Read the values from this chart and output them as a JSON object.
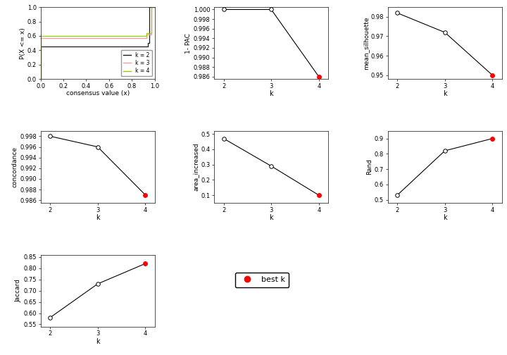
{
  "pac": {
    "k": [
      2,
      3,
      4
    ],
    "v": [
      1.0,
      1.0,
      0.986
    ],
    "best_k": 4,
    "ylim": [
      0.9855,
      1.0005
    ],
    "yticks": [
      0.986,
      0.988,
      0.99,
      0.992,
      0.994,
      0.996,
      0.998,
      1.0
    ],
    "ylabel": "1- PAC"
  },
  "silhouette": {
    "k": [
      2,
      3,
      4
    ],
    "v": [
      0.982,
      0.972,
      0.95
    ],
    "best_k": 4,
    "ylim": [
      0.948,
      0.985
    ],
    "yticks": [
      0.95,
      0.96,
      0.97,
      0.98
    ],
    "ylabel": "mean_silhouette"
  },
  "concordance": {
    "k": [
      2,
      3,
      4
    ],
    "v": [
      0.998,
      0.996,
      0.987
    ],
    "best_k": 4,
    "ylim": [
      0.9855,
      0.999
    ],
    "yticks": [
      0.986,
      0.988,
      0.99,
      0.992,
      0.994,
      0.996,
      0.998
    ],
    "ylabel": "concordance"
  },
  "area_increased": {
    "k": [
      2,
      3,
      4
    ],
    "v": [
      0.47,
      0.29,
      0.1
    ],
    "best_k": 4,
    "ylim": [
      0.05,
      0.52
    ],
    "yticks": [
      0.1,
      0.2,
      0.3,
      0.4,
      0.5
    ],
    "ylabel": "area_increased"
  },
  "rand": {
    "k": [
      2,
      3,
      4
    ],
    "v": [
      0.53,
      0.82,
      0.9
    ],
    "best_k": 4,
    "ylim": [
      0.48,
      0.95
    ],
    "yticks": [
      0.5,
      0.6,
      0.7,
      0.8,
      0.9
    ],
    "ylabel": "Rand"
  },
  "jaccard": {
    "k": [
      2,
      3,
      4
    ],
    "v": [
      0.58,
      0.73,
      0.82
    ],
    "best_k": 4,
    "ylim": [
      0.54,
      0.86
    ],
    "yticks": [
      0.55,
      0.6,
      0.65,
      0.7,
      0.75,
      0.8,
      0.85
    ],
    "ylabel": "Jaccard"
  },
  "legend_labels": [
    "k = 2",
    "k = 3",
    "k = 4"
  ],
  "legend_colors": [
    "#1a1a1a",
    "#FF9999",
    "#99CC00"
  ],
  "best_k_color": "#FF0000",
  "ecdf_xlim": [
    0.0,
    1.0
  ],
  "ecdf_ylim": [
    0.0,
    1.0
  ],
  "ecdf_xticks": [
    0.0,
    0.2,
    0.4,
    0.6,
    0.8,
    1.0
  ],
  "ecdf_yticks": [
    0.0,
    0.2,
    0.4,
    0.6,
    0.8,
    1.0
  ]
}
